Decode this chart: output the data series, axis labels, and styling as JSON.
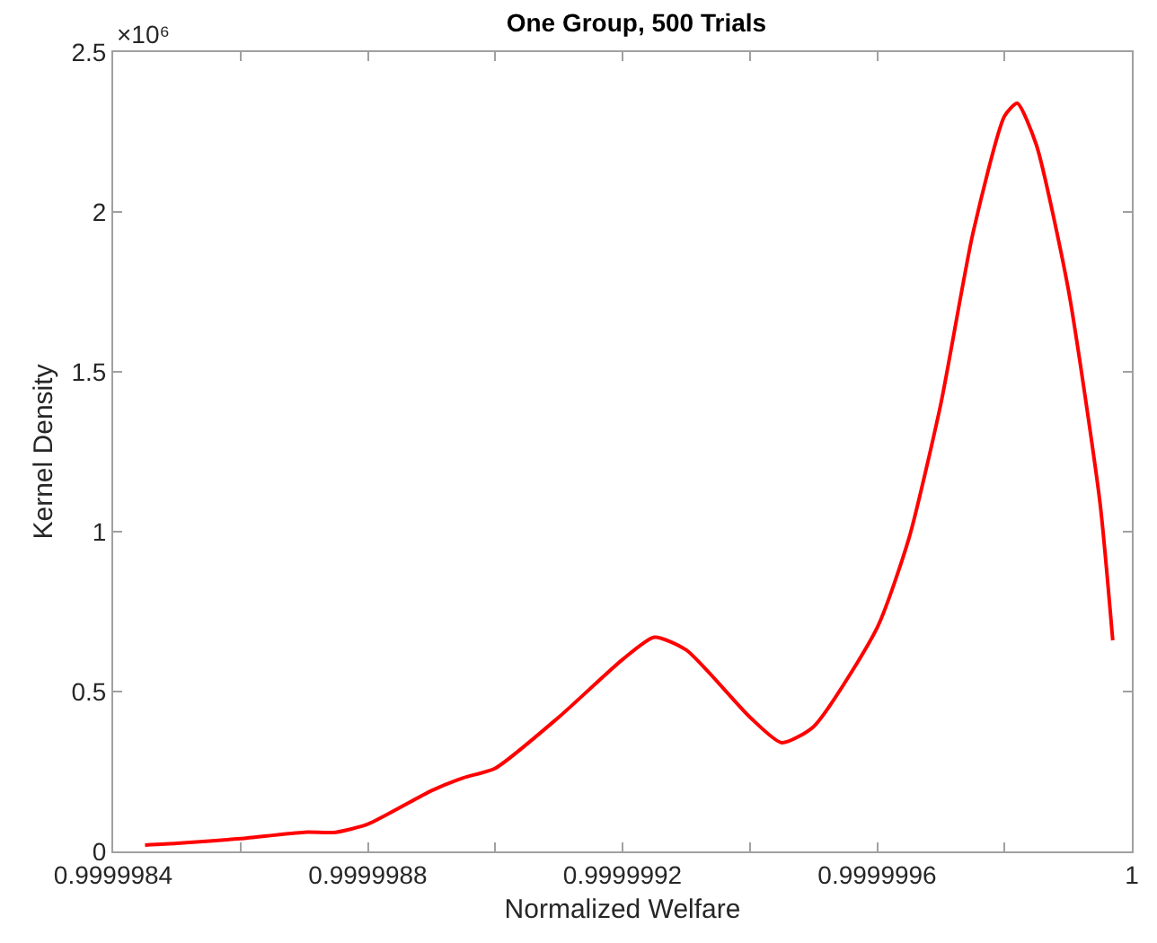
{
  "chart_data": {
    "type": "line",
    "title": "One Group, 500 Trials",
    "xlabel": "Normalized Welfare",
    "ylabel": "Kernel Density",
    "annotations": [
      "×10⁶"
    ],
    "x": [
      0.99999845,
      0.9999985,
      0.9999986,
      0.9999987,
      0.99999875,
      0.9999988,
      0.9999989,
      0.99999895,
      0.999999,
      0.9999991,
      0.9999992,
      0.99999925,
      0.9999993,
      0.9999994,
      0.99999945,
      0.9999995,
      0.9999996,
      0.99999965,
      0.9999997,
      0.99999975,
      0.9999998,
      0.99999982,
      0.99999985,
      0.9999999,
      0.99999995,
      0.99999997
    ],
    "series": [
      {
        "color": "#ff0000",
        "values": [
          0.02,
          0.025,
          0.04,
          0.06,
          0.06,
          0.085,
          0.19,
          0.23,
          0.26,
          0.42,
          0.6,
          0.67,
          0.63,
          0.42,
          0.34,
          0.39,
          0.7,
          0.98,
          1.4,
          1.93,
          2.3,
          2.34,
          2.21,
          1.76,
          1.09,
          0.66
        ]
      }
    ],
    "xlim": [
      0.9999984,
      1
    ],
    "xticks": [
      0.9999984,
      {
        "value": 0.9999986,
        "label": null
      },
      0.9999988,
      {
        "value": 0.999999,
        "label": null
      },
      0.9999992,
      {
        "value": 0.9999994,
        "label": null
      },
      0.9999996,
      {
        "value": 0.9999998,
        "label": null
      },
      1
    ],
    "ylim": [
      0,
      2.5
    ],
    "yticks": [
      0,
      0.5,
      1,
      1.5,
      2,
      2.5
    ],
    "grid": false,
    "marker": "none",
    "line_style": "solid"
  }
}
